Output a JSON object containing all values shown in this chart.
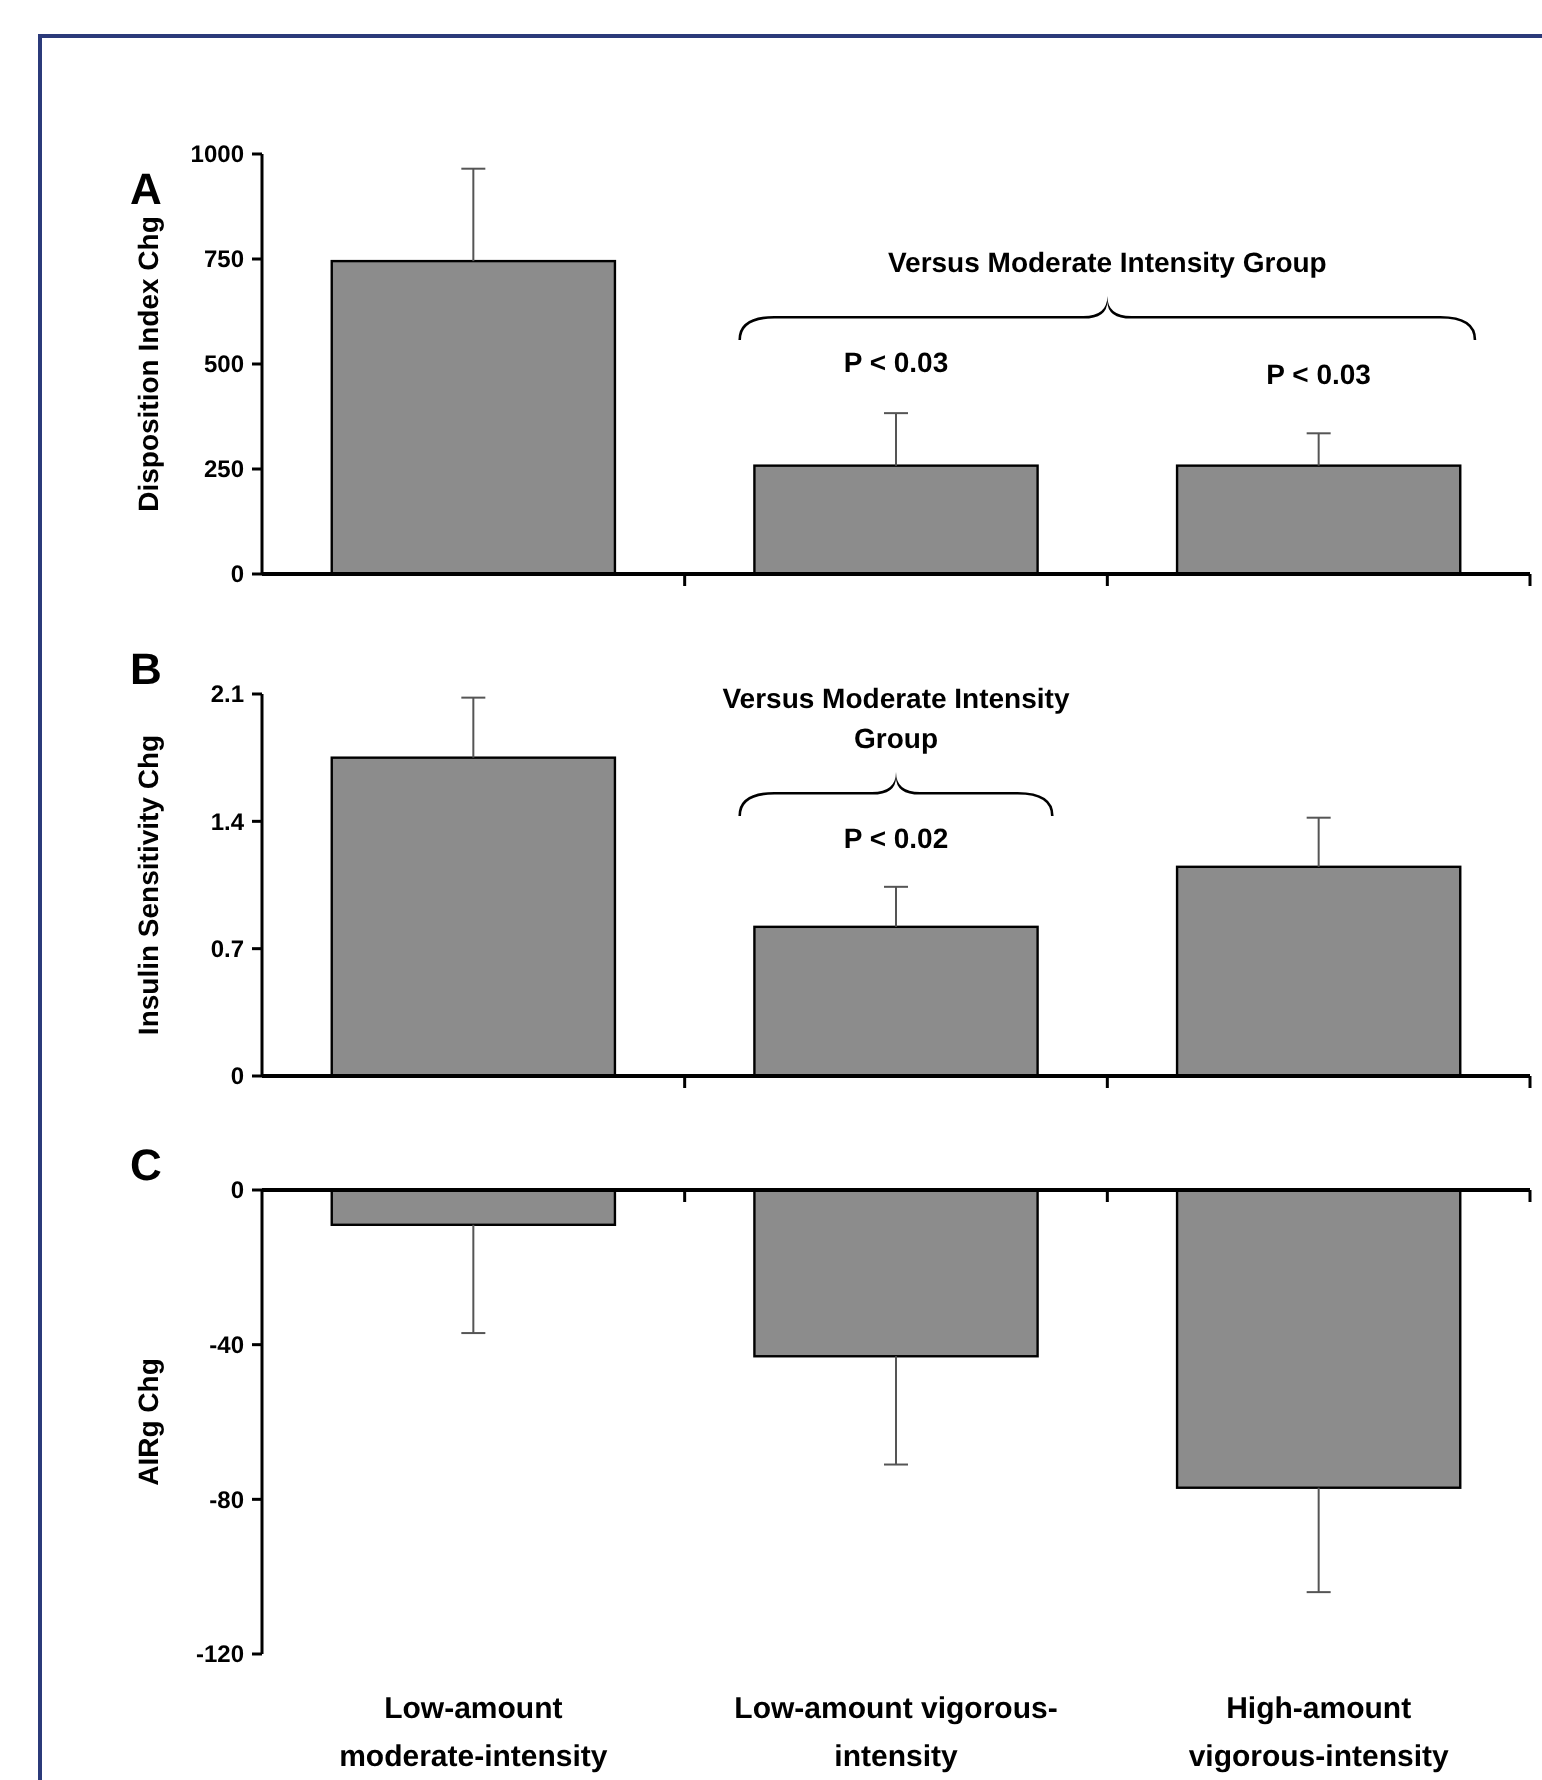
{
  "chart_data": [
    {
      "type": "bar",
      "title": "A",
      "ylabel": "Disposition Index Chg",
      "categories": [
        null,
        null,
        null
      ],
      "values": [
        745,
        258,
        258
      ],
      "errors": [
        [
          745,
          965
        ],
        [
          258,
          383
        ],
        [
          258,
          335
        ]
      ],
      "color": "#8c8c8c",
      "ylim": [
        0,
        1000
      ],
      "yticks": [
        0,
        250,
        500,
        750,
        1000
      ],
      "tick_labels": "y",
      "annotations": [
        "Versus Moderate Intensity Group",
        "P < 0.03",
        "P < 0.03"
      ]
    },
    {
      "type": "bar",
      "title": "B",
      "ylabel": "Insulin Sensitivity Chg",
      "categories": [
        null,
        null,
        null
      ],
      "values": [
        1.75,
        0.82,
        1.15
      ],
      "errors": [
        [
          1.75,
          2.08
        ],
        [
          0.82,
          1.04
        ],
        [
          1.15,
          1.42
        ]
      ],
      "color": "#8c8c8c",
      "ylim": [
        0,
        2.1
      ],
      "yticks": [
        0,
        0.7,
        1.4,
        2.1
      ],
      "tick_labels": "y",
      "annotations": [
        "Versus Moderate Intensity Group",
        "P < 0.02"
      ]
    },
    {
      "type": "bar",
      "title": "C",
      "ylabel": "AIRg Chg",
      "categories": [
        "Low-amount\nmoderate-intensity",
        "Low-amount vigorous-\nintensity",
        "High-amount\nvigorous-intensity"
      ],
      "values": [
        -9,
        -43,
        -77
      ],
      "errors": [
        [
          -37,
          -9
        ],
        [
          -71,
          -43
        ],
        [
          -104,
          -77
        ]
      ],
      "color": "#8c8c8c",
      "ylim": [
        -120,
        0
      ],
      "yticks": [
        -120,
        -80,
        -40,
        0
      ]
    }
  ]
}
